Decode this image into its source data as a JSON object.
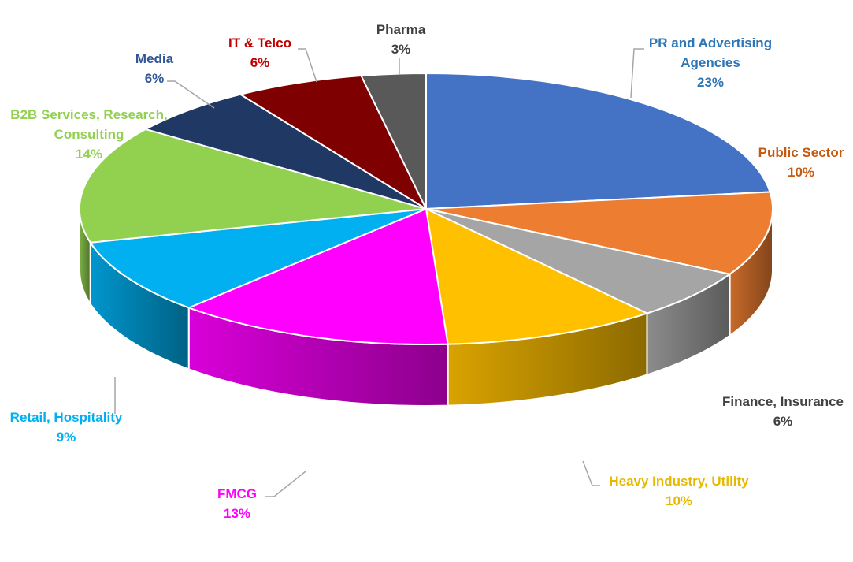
{
  "chart_data": {
    "type": "pie",
    "title": "",
    "slices": [
      {
        "label_lines": [
          "PR and Advertising",
          "Agencies"
        ],
        "value_label": "23%",
        "value": 23,
        "color": "#4472c4",
        "label_color": "#2e75b6"
      },
      {
        "label_lines": [
          "Public Sector"
        ],
        "value_label": "10%",
        "value": 10,
        "color": "#ed7d31",
        "label_color": "#c55a11"
      },
      {
        "label_lines": [
          "Finance, Insurance"
        ],
        "value_label": "6%",
        "value": 6,
        "color": "#a5a5a5",
        "label_color": "#404040"
      },
      {
        "label_lines": [
          "Heavy Industry, Utility"
        ],
        "value_label": "10%",
        "value": 10,
        "color": "#ffc000",
        "label_color": "#e6b800"
      },
      {
        "label_lines": [
          "FMCG"
        ],
        "value_label": "13%",
        "value": 13,
        "color": "#ff00ff",
        "label_color": "#ff00ff"
      },
      {
        "label_lines": [
          "Retail, Hospitality"
        ],
        "value_label": "9%",
        "value": 9,
        "color": "#00b0f0",
        "label_color": "#00b0f0"
      },
      {
        "label_lines": [
          "B2B Services, Research,",
          "Consulting"
        ],
        "value_label": "14%",
        "value": 14,
        "color": "#92d050",
        "label_color": "#92d050"
      },
      {
        "label_lines": [
          "Media"
        ],
        "value_label": "6%",
        "value": 6,
        "color": "#1f3864",
        "label_color": "#2f5597"
      },
      {
        "label_lines": [
          "IT & Telco"
        ],
        "value_label": "6%",
        "value": 6,
        "color": "#7f0000",
        "label_color": "#c00000"
      },
      {
        "label_lines": [
          "Pharma"
        ],
        "value_label": "3%",
        "value": 3,
        "color": "#595959",
        "label_color": "#404040"
      }
    ],
    "legend": "none",
    "labels": "outside-with-leader-lines",
    "style": "3d-pie"
  }
}
